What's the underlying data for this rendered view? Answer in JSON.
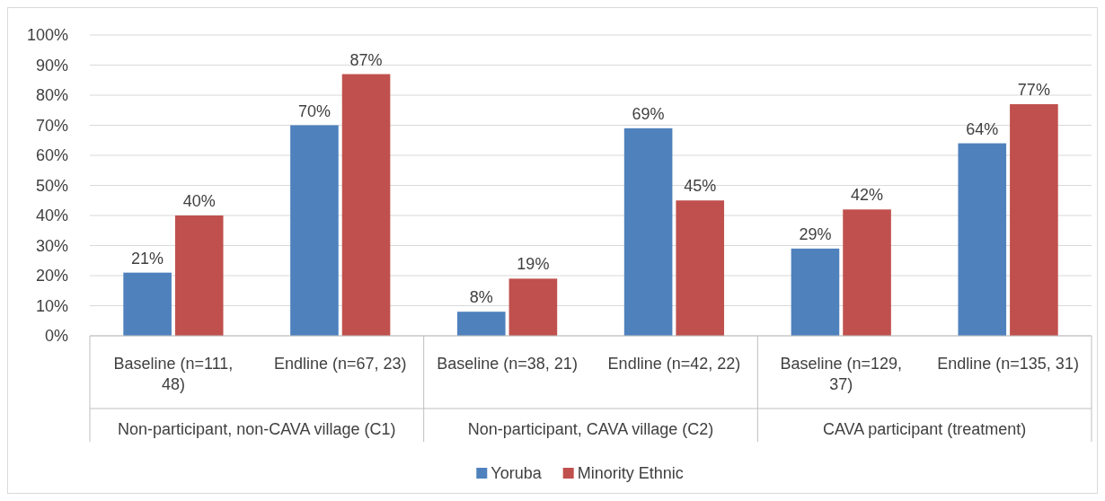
{
  "chart_data": {
    "type": "bar",
    "categories": [
      "Baseline (n=111, 48)",
      "Endline (n=67, 23)",
      "Baseline (n=38, 21)",
      "Endline (n=42, 22)",
      "Baseline (n=129, 37)",
      "Endline (n=135, 31)"
    ],
    "annotations": [
      "Non-participant, non-CAVA village (C1)",
      "Non-participant, CAVA village (C2)",
      "CAVA participant (treatment)"
    ],
    "series": [
      {
        "name": "Yoruba",
        "color": "#4f81bd",
        "values": [
          21,
          70,
          8,
          69,
          29,
          64
        ],
        "value_labels": [
          "21%",
          "70%",
          "8%",
          "69%",
          "29%",
          "64%"
        ]
      },
      {
        "name": "Minority Ethnic",
        "color": "#c0504d",
        "values": [
          40,
          87,
          19,
          45,
          42,
          77
        ],
        "value_labels": [
          "40%",
          "87%",
          "19%",
          "45%",
          "42%",
          "77%"
        ]
      }
    ],
    "ylim": [
      0,
      100
    ],
    "yticks": [
      {
        "value": 0,
        "label": "0%"
      },
      {
        "value": 10,
        "label": "10%"
      },
      {
        "value": 20,
        "label": "20%"
      },
      {
        "value": 30,
        "label": "30%"
      },
      {
        "value": 40,
        "label": "40%"
      },
      {
        "value": 50,
        "label": "50%"
      },
      {
        "value": 60,
        "label": "60%"
      },
      {
        "value": 70,
        "label": "70%"
      },
      {
        "value": 80,
        "label": "80%"
      },
      {
        "value": 90,
        "label": "90%"
      },
      {
        "value": 100,
        "label": "100%"
      }
    ],
    "grid": "y",
    "legend": "bottom"
  }
}
